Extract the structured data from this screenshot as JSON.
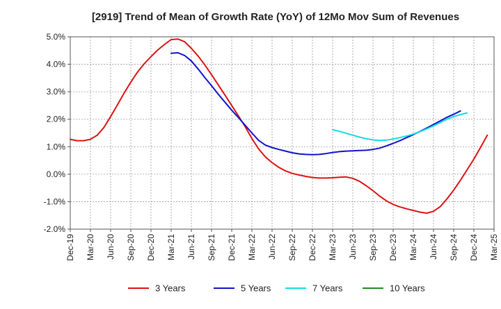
{
  "chart_data": {
    "type": "line",
    "title": "[2919]  Trend of Mean of Growth Rate (YoY) of 12Mo Mov Sum of Revenues",
    "xlabel": "",
    "ylabel": "",
    "ylim": [
      -2.0,
      5.0
    ],
    "y_ticks": [
      -2.0,
      -1.0,
      0.0,
      1.0,
      2.0,
      3.0,
      4.0,
      5.0
    ],
    "y_tick_labels": [
      "-2.0%",
      "-1.0%",
      "0.0%",
      "1.0%",
      "2.0%",
      "3.0%",
      "4.0%",
      "5.0%"
    ],
    "x_tick_labels": [
      "Dec-19",
      "Mar-20",
      "Jun-20",
      "Sep-20",
      "Dec-20",
      "Mar-21",
      "Jun-21",
      "Sep-21",
      "Dec-21",
      "Mar-22",
      "Jun-22",
      "Sep-22",
      "Dec-22",
      "Mar-23",
      "Jun-23",
      "Sep-23",
      "Dec-23",
      "Mar-24",
      "Jun-24",
      "Sep-24",
      "Dec-24",
      "Mar-25"
    ],
    "grid": true,
    "legend_position": "bottom",
    "series": [
      {
        "name": "3 Years",
        "color": "#dd1111",
        "start_month": 0,
        "values": [
          1.27,
          1.22,
          1.22,
          1.27,
          1.42,
          1.7,
          2.1,
          2.52,
          2.95,
          3.35,
          3.72,
          4.02,
          4.28,
          4.52,
          4.72,
          4.9,
          4.92,
          4.82,
          4.58,
          4.3,
          3.98,
          3.62,
          3.25,
          2.88,
          2.5,
          2.12,
          1.73,
          1.3,
          0.92,
          0.63,
          0.42,
          0.25,
          0.12,
          0.03,
          -0.03,
          -0.08,
          -0.12,
          -0.14,
          -0.14,
          -0.13,
          -0.11,
          -0.1,
          -0.15,
          -0.26,
          -0.42,
          -0.6,
          -0.8,
          -0.97,
          -1.1,
          -1.19,
          -1.26,
          -1.32,
          -1.38,
          -1.42,
          -1.35,
          -1.18,
          -0.9,
          -0.58,
          -0.22,
          0.16,
          0.55,
          0.98,
          1.42
        ]
      },
      {
        "name": "5 Years",
        "color": "#1111cc",
        "start_month": 15,
        "values": [
          4.4,
          4.42,
          4.32,
          4.12,
          3.83,
          3.52,
          3.22,
          2.91,
          2.62,
          2.33,
          2.06,
          1.78,
          1.5,
          1.23,
          1.06,
          0.97,
          0.9,
          0.84,
          0.78,
          0.74,
          0.72,
          0.71,
          0.72,
          0.75,
          0.79,
          0.82,
          0.84,
          0.85,
          0.86,
          0.87,
          0.9,
          0.95,
          1.03,
          1.12,
          1.22,
          1.33,
          1.44,
          1.56,
          1.68,
          1.81,
          1.94,
          2.07,
          2.18,
          2.3
        ]
      },
      {
        "name": "7 Years",
        "color": "#11dddd",
        "start_month": 39,
        "values": [
          1.62,
          1.56,
          1.49,
          1.42,
          1.35,
          1.29,
          1.25,
          1.23,
          1.24,
          1.28,
          1.33,
          1.39,
          1.46,
          1.55,
          1.65,
          1.76,
          1.88,
          2.0,
          2.1,
          2.17,
          2.23
        ]
      },
      {
        "name": "10 Years",
        "color": "#228822",
        "start_month": 0,
        "values": []
      }
    ]
  }
}
